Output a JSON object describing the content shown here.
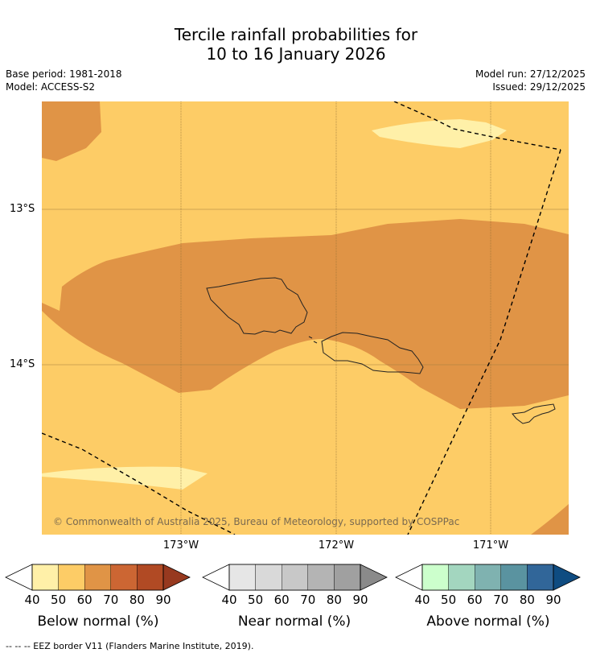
{
  "title": {
    "line1": "Tercile rainfall probabilities for",
    "line2": "10 to 16 January 2026"
  },
  "meta": {
    "base_period": "Base period: 1981-2018",
    "model": "Model: ACCESS-S2",
    "model_run": "Model run: 27/12/2025",
    "issued": "Issued: 29/12/2025"
  },
  "map": {
    "lat_labels": [
      "13°S",
      "14°S"
    ],
    "lon_labels": [
      "173°W",
      "172°W",
      "171°W"
    ],
    "copyright": "© Commonwealth of Australia 2025, Bureau of Meteorology, supported by COSPPac"
  },
  "colorbars": {
    "ticks": [
      "40",
      "50",
      "60",
      "70",
      "80",
      "90"
    ],
    "below": {
      "label": "Below normal (%)",
      "colors": [
        "#ffffff",
        "#fff0a8",
        "#fdcc66",
        "#e09446",
        "#cc6633",
        "#b14a24",
        "#97391f"
      ]
    },
    "near": {
      "label": "Near normal (%)",
      "colors": [
        "#ffffff",
        "#e6e6e6",
        "#d9d9d9",
        "#c8c8c8",
        "#b4b4b4",
        "#a0a0a0",
        "#8a8a8a"
      ]
    },
    "above": {
      "label": "Above normal (%)",
      "colors": [
        "#ffffff",
        "#ccffcc",
        "#a3d6bf",
        "#7fb2b0",
        "#5a93a0",
        "#316699",
        "#0f4c81"
      ]
    }
  },
  "footnote": "--  --  -- EEZ border V11 (Flanders Marine Institute, 2019)."
}
